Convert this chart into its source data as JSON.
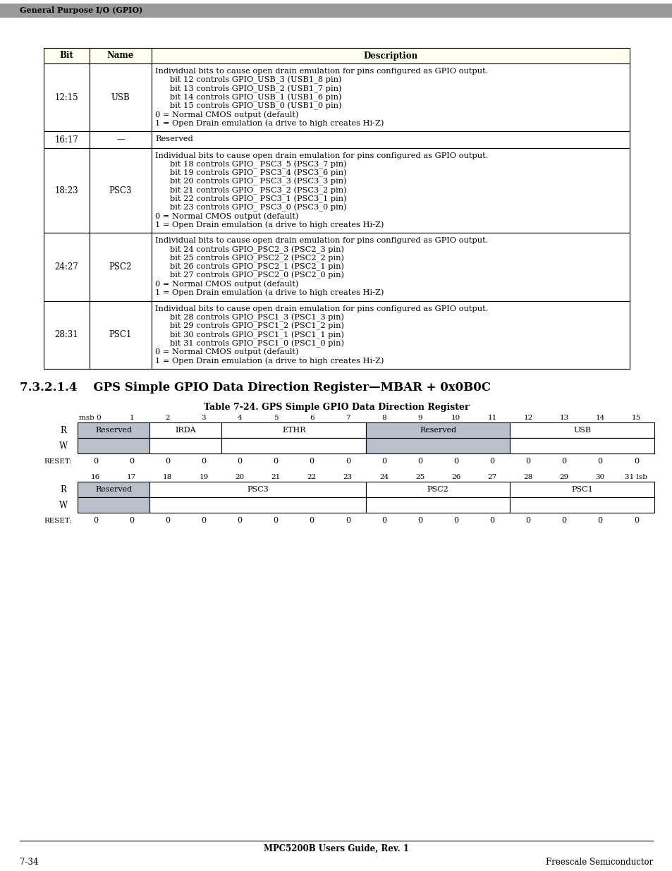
{
  "page_header": "General Purpose I/O (GPIO)",
  "section_title": "7.3.2.1.4    GPS Simple GPIO Data Direction Register—MBAR + 0x0B0C",
  "table_title": "Table 7-24. GPS Simple GPIO Data Direction Register",
  "header_bg": "#ffffee",
  "table_header": [
    "Bit",
    "Name",
    "Description"
  ],
  "table_rows": [
    {
      "bit": "12:15",
      "name": "USB",
      "desc_lines": [
        {
          "text": "Individual bits to cause open drain emulation for pins configured as GPIO output.",
          "indent": 0
        },
        {
          "text": "bit 12 controls GPIO_USB_3 (USB1_8 pin)",
          "indent": 1
        },
        {
          "text": "bit 13 controls GPIO_USB_2 (USB1_7 pin)",
          "indent": 1
        },
        {
          "text": "bit 14 controls GPIO_USB_1 (USB1_6 pin)",
          "indent": 1
        },
        {
          "text": "bit 15 controls GPIO_USB_0 (USB1_0 pin)",
          "indent": 1
        },
        {
          "text": "0 = Normal CMOS output (default)",
          "indent": 0
        },
        {
          "text": "1 = Open Drain emulation (a drive to high creates Hi-Z)",
          "indent": 0
        }
      ]
    },
    {
      "bit": "16:17",
      "name": "—",
      "desc_lines": [
        {
          "text": "Reserved",
          "indent": 0
        }
      ]
    },
    {
      "bit": "18:23",
      "name": "PSC3",
      "desc_lines": [
        {
          "text": "Individual bits to cause open drain emulation for pins configured as GPIO output.",
          "indent": 0
        },
        {
          "text": "bit 18 controls GPIO_ PSC3_5 (PSC3_7 pin)",
          "indent": 1
        },
        {
          "text": "bit 19 controls GPIO_ PSC3_4 (PSC3_6 pin)",
          "indent": 1
        },
        {
          "text": "bit 20 controls GPIO_ PSC3_3 (PSC3_3 pin)",
          "indent": 1
        },
        {
          "text": "bit 21 controls GPIO_ PSC3_2 (PSC3_2 pin)",
          "indent": 1
        },
        {
          "text": "bit 22 controls GPIO_ PSC3_1 (PSC3_1 pin)",
          "indent": 1
        },
        {
          "text": "bit 23 controls GPIO_ PSC3_0 (PSC3_0 pin)",
          "indent": 1
        },
        {
          "text": "0 = Normal CMOS output (default)",
          "indent": 0
        },
        {
          "text": "1 = Open Drain emulation (a drive to high creates Hi-Z)",
          "indent": 0
        }
      ]
    },
    {
      "bit": "24:27",
      "name": "PSC2",
      "desc_lines": [
        {
          "text": "Individual bits to cause open drain emulation for pins configured as GPIO output.",
          "indent": 0
        },
        {
          "text": "bit 24 controls GPIO_PSC2_3 (PSC2_3 pin)",
          "indent": 1
        },
        {
          "text": "bit 25 controls GPIO_PSC2_2 (PSC2_2 pin)",
          "indent": 1
        },
        {
          "text": "bit 26 controls GPIO_PSC2_1 (PSC2_1 pin)",
          "indent": 1
        },
        {
          "text": "bit 27 controls GPIO_PSC2_0 (PSC2_0 pin)",
          "indent": 1
        },
        {
          "text": "0 = Normal CMOS output (default)",
          "indent": 0
        },
        {
          "text": "1 = Open Drain emulation (a drive to high creates Hi-Z)",
          "indent": 0
        }
      ]
    },
    {
      "bit": "28:31",
      "name": "PSC1",
      "desc_lines": [
        {
          "text": "Individual bits to cause open drain emulation for pins configured as GPIO output.",
          "indent": 0
        },
        {
          "text": "bit 28 controls GPIO_PSC1_3 (PSC1_3 pin)",
          "indent": 1
        },
        {
          "text": "bit 29 controls GPIO_PSC1_2 (PSC1_2 pin)",
          "indent": 1
        },
        {
          "text": "bit 30 controls GPIO_PSC1_1 (PSC1_1 pin)",
          "indent": 1
        },
        {
          "text": "bit 31 controls GPIO_PSC1_0 (PSC1_0 pin)",
          "indent": 1
        },
        {
          "text": "0 = Normal CMOS output (default)",
          "indent": 0
        },
        {
          "text": "1 = Open Drain emulation (a drive to high creates Hi-Z)",
          "indent": 0
        }
      ]
    }
  ],
  "reg_table1": {
    "bit_labels": [
      "msb 0",
      "1",
      "2",
      "3",
      "4",
      "5",
      "6",
      "7",
      "8",
      "9",
      "10",
      "11",
      "12",
      "13",
      "14",
      "15"
    ],
    "R_row": [
      {
        "label": "Reserved",
        "span": 2,
        "bg": "#b8c0cc"
      },
      {
        "label": "IRDA",
        "span": 2,
        "bg": "#ffffff"
      },
      {
        "label": "ETHR",
        "span": 4,
        "bg": "#ffffff"
      },
      {
        "label": "Reserved",
        "span": 4,
        "bg": "#b8c0cc"
      },
      {
        "label": "USB",
        "span": 4,
        "bg": "#ffffff"
      }
    ],
    "W_row": [
      {
        "label": "",
        "span": 2,
        "bg": "#b8c0cc"
      },
      {
        "label": "",
        "span": 2,
        "bg": "#ffffff"
      },
      {
        "label": "",
        "span": 4,
        "bg": "#ffffff"
      },
      {
        "label": "",
        "span": 4,
        "bg": "#b8c0cc"
      },
      {
        "label": "",
        "span": 4,
        "bg": "#ffffff"
      }
    ],
    "reset_values": [
      "0",
      "0",
      "0",
      "0",
      "0",
      "0",
      "0",
      "0",
      "0",
      "0",
      "0",
      "0",
      "0",
      "0",
      "0",
      "0"
    ]
  },
  "reg_table2": {
    "bit_labels": [
      "16",
      "17",
      "18",
      "19",
      "20",
      "21",
      "22",
      "23",
      "24",
      "25",
      "26",
      "27",
      "28",
      "29",
      "30",
      "31 lsb"
    ],
    "R_row": [
      {
        "label": "Reserved",
        "span": 2,
        "bg": "#b8c0cc"
      },
      {
        "label": "PSC3",
        "span": 6,
        "bg": "#ffffff"
      },
      {
        "label": "PSC2",
        "span": 4,
        "bg": "#ffffff"
      },
      {
        "label": "PSC1",
        "span": 4,
        "bg": "#ffffff"
      }
    ],
    "W_row": [
      {
        "label": "",
        "span": 2,
        "bg": "#b8c0cc"
      },
      {
        "label": "",
        "span": 6,
        "bg": "#ffffff"
      },
      {
        "label": "",
        "span": 4,
        "bg": "#ffffff"
      },
      {
        "label": "",
        "span": 4,
        "bg": "#ffffff"
      }
    ],
    "reset_values": [
      "0",
      "0",
      "0",
      "0",
      "0",
      "0",
      "0",
      "0",
      "0",
      "0",
      "0",
      "0",
      "0",
      "0",
      "0",
      "0"
    ]
  },
  "footer_text": "MPC5200B Users Guide, Rev. 1",
  "page_number": "7-34",
  "company": "Freescale Semiconductor",
  "top_bar_color": "#999999",
  "border_color": "#000000"
}
